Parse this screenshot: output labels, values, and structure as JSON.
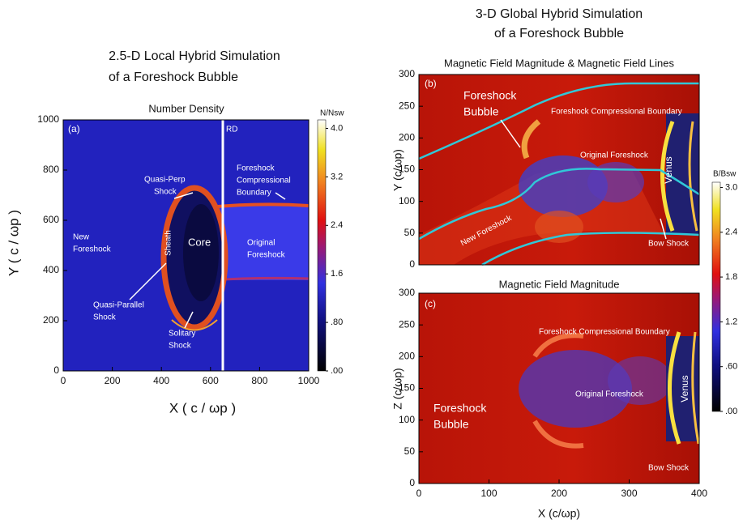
{
  "left_figure": {
    "title_lines": [
      "2.5-D Local Hybrid Simulation",
      "of a Foreshock Bubble"
    ],
    "panel": {
      "title": "Number Density",
      "label": "(a)",
      "xlabel": "X ( c / ωp )",
      "ylabel": "Y ( c / ωp )",
      "xlim": [
        0,
        1000
      ],
      "ylim": [
        0,
        1000
      ],
      "xticks": [
        0,
        200,
        400,
        600,
        800,
        1000
      ],
      "yticks": [
        0,
        200,
        400,
        600,
        800,
        1000
      ],
      "annotations": [
        {
          "lines": [
            "RD"
          ]
        },
        {
          "lines": [
            "Quasi-Perp",
            "Shock"
          ]
        },
        {
          "lines": [
            "Foreshock",
            "Compressional",
            "Boundary"
          ]
        },
        {
          "lines": [
            "New",
            "Foreshock"
          ]
        },
        {
          "lines": [
            "Sheath"
          ]
        },
        {
          "lines": [
            "Core"
          ]
        },
        {
          "lines": [
            "Original",
            "Foreshock"
          ]
        },
        {
          "lines": [
            "Quasi-Parallel",
            "Shock"
          ]
        },
        {
          "lines": [
            "Solitary",
            "Shock"
          ]
        }
      ]
    },
    "colorbar": {
      "label": "N/Nsw",
      "lim": [
        0,
        4.14
      ],
      "ticks": [
        {
          "value": 0,
          "label": ".00"
        },
        {
          "value": 0.8,
          "label": ".80"
        },
        {
          "value": 1.6,
          "label": "1.6"
        },
        {
          "value": 2.4,
          "label": "2.4"
        },
        {
          "value": 3.2,
          "label": "3.2"
        },
        {
          "value": 4.0,
          "label": "4.0"
        }
      ]
    }
  },
  "right_figure": {
    "title_lines": [
      "3-D Global Hybrid Simulation",
      "of a Foreshock Bubble"
    ],
    "xlabel": "X (c/ωp)",
    "xlim": [
      0,
      400
    ],
    "xticks": [
      0,
      100,
      200,
      300,
      400
    ],
    "panel_b": {
      "title": "Magnetic Field Magnitude & Magnetic Field Lines",
      "label": "(b)",
      "ylabel": "Y (c/ωp)",
      "ylim": [
        0,
        300
      ],
      "yticks": [
        0,
        50,
        100,
        150,
        200,
        250,
        300
      ],
      "annotations": [
        {
          "lines": [
            "Foreshock",
            "Bubble"
          ]
        },
        {
          "lines": [
            "Foreshock Compressional Boundary"
          ]
        },
        {
          "lines": [
            "Original Foreshock"
          ]
        },
        {
          "lines": [
            "Venus"
          ]
        },
        {
          "lines": [
            "New Foreshock"
          ]
        },
        {
          "lines": [
            "Bow Shock"
          ]
        }
      ]
    },
    "panel_c": {
      "title": "Magnetic Field Magnitude",
      "label": "(c)",
      "ylabel": "Z (c/ωp)",
      "ylim": [
        0,
        300
      ],
      "yticks": [
        0,
        50,
        100,
        150,
        200,
        250,
        300
      ],
      "annotations": [
        {
          "lines": [
            "Foreshock Compressional Boundary"
          ]
        },
        {
          "lines": [
            "Original Foreshock"
          ]
        },
        {
          "lines": [
            "Foreshock",
            "Bubble"
          ]
        },
        {
          "lines": [
            "Venus"
          ]
        },
        {
          "lines": [
            "Bow Shock"
          ]
        }
      ]
    },
    "colorbar": {
      "label": "B/Bsw",
      "lim": [
        0,
        3.07
      ],
      "ticks": [
        {
          "value": 0,
          "label": ".00"
        },
        {
          "value": 0.6,
          "label": ".60"
        },
        {
          "value": 1.2,
          "label": "1.2"
        },
        {
          "value": 1.8,
          "label": "1.8"
        },
        {
          "value": 2.4,
          "label": "2.4"
        },
        {
          "value": 3.0,
          "label": "3.0"
        }
      ]
    }
  }
}
